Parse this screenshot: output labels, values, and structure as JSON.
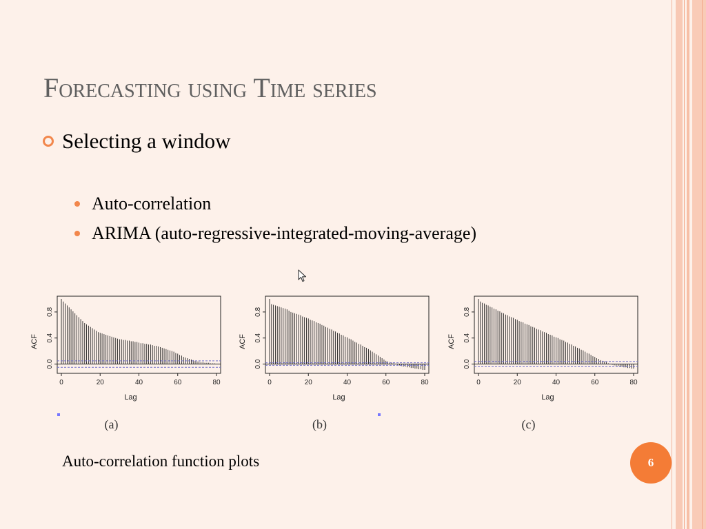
{
  "slide": {
    "title": "Forecasting using Time series",
    "bullet_main": "Selecting a window",
    "sub_bullets": [
      "Auto-correlation",
      "ARIMA (auto-regressive-integrated-moving-average)"
    ],
    "caption": "Auto-correlation function plots",
    "page_number": "6"
  },
  "icons": {
    "main_bullet": "ring-bullet-icon",
    "sub_bullet": "dot-bullet-icon",
    "cursor": "mouse-pointer-icon"
  },
  "colors": {
    "background": "#fdf1ea",
    "accent": "#f47c36",
    "title": "#5f5f5f",
    "confidence_line": "#7070c8"
  },
  "chart_data": [
    {
      "type": "bar",
      "panel_label": "(a)",
      "xlabel": "Lag",
      "ylabel": "ACF",
      "xlim": [
        0,
        80
      ],
      "ylim": [
        -0.1,
        1.0
      ],
      "xticks": [
        "0",
        "20",
        "40",
        "60",
        "80"
      ],
      "yticks": [
        "0.0",
        "0.4",
        "0.8"
      ],
      "confidence_bounds": [
        0.05,
        -0.05
      ],
      "x": [
        0,
        1,
        2,
        3,
        4,
        5,
        6,
        7,
        8,
        9,
        10,
        11,
        12,
        13,
        14,
        15,
        16,
        17,
        18,
        19,
        20,
        21,
        22,
        23,
        24,
        25,
        26,
        27,
        28,
        29,
        30,
        31,
        32,
        33,
        34,
        35,
        36,
        37,
        38,
        39,
        40,
        41,
        42,
        43,
        44,
        45,
        46,
        47,
        48,
        49,
        50,
        51,
        52,
        53,
        54,
        55,
        56,
        57,
        58,
        59,
        60,
        61,
        62,
        63,
        64,
        65,
        66,
        67,
        68,
        69,
        70,
        71,
        72,
        73,
        74,
        75,
        76,
        77,
        78,
        79,
        80
      ],
      "values": [
        1.0,
        0.96,
        0.93,
        0.9,
        0.87,
        0.84,
        0.81,
        0.78,
        0.75,
        0.72,
        0.69,
        0.66,
        0.63,
        0.61,
        0.59,
        0.57,
        0.55,
        0.53,
        0.51,
        0.49,
        0.48,
        0.47,
        0.46,
        0.45,
        0.44,
        0.43,
        0.42,
        0.41,
        0.4,
        0.39,
        0.38,
        0.38,
        0.37,
        0.37,
        0.36,
        0.36,
        0.35,
        0.35,
        0.34,
        0.34,
        0.33,
        0.32,
        0.32,
        0.31,
        0.31,
        0.3,
        0.3,
        0.29,
        0.28,
        0.28,
        0.27,
        0.26,
        0.25,
        0.24,
        0.23,
        0.22,
        0.21,
        0.2,
        0.19,
        0.17,
        0.16,
        0.14,
        0.13,
        0.11,
        0.1,
        0.09,
        0.08,
        0.07,
        0.06,
        0.05,
        0.04,
        0.04,
        0.03,
        0.03,
        0.02,
        0.02,
        0.02,
        0.01,
        0.01,
        0.01,
        0.0
      ]
    },
    {
      "type": "bar",
      "panel_label": "(b)",
      "xlabel": "Lag",
      "ylabel": "ACF",
      "xlim": [
        0,
        80
      ],
      "ylim": [
        -0.1,
        1.0
      ],
      "xticks": [
        "0",
        "20",
        "40",
        "60",
        "80"
      ],
      "yticks": [
        "0.0",
        "0.4",
        "0.8"
      ],
      "confidence_bounds": [
        0.02,
        -0.02
      ],
      "x": [
        0,
        1,
        2,
        3,
        4,
        5,
        6,
        7,
        8,
        9,
        10,
        11,
        12,
        13,
        14,
        15,
        16,
        17,
        18,
        19,
        20,
        21,
        22,
        23,
        24,
        25,
        26,
        27,
        28,
        29,
        30,
        31,
        32,
        33,
        34,
        35,
        36,
        37,
        38,
        39,
        40,
        41,
        42,
        43,
        44,
        45,
        46,
        47,
        48,
        49,
        50,
        51,
        52,
        53,
        54,
        55,
        56,
        57,
        58,
        59,
        60,
        61,
        62,
        63,
        64,
        65,
        66,
        67,
        68,
        69,
        70,
        71,
        72,
        73,
        74,
        75,
        76,
        77,
        78,
        79,
        80
      ],
      "values": [
        1.0,
        0.92,
        0.91,
        0.9,
        0.89,
        0.88,
        0.87,
        0.86,
        0.85,
        0.84,
        0.82,
        0.8,
        0.79,
        0.78,
        0.77,
        0.76,
        0.75,
        0.73,
        0.72,
        0.71,
        0.7,
        0.68,
        0.67,
        0.66,
        0.64,
        0.63,
        0.62,
        0.6,
        0.59,
        0.57,
        0.56,
        0.54,
        0.53,
        0.51,
        0.5,
        0.48,
        0.47,
        0.45,
        0.44,
        0.42,
        0.41,
        0.39,
        0.38,
        0.36,
        0.34,
        0.33,
        0.31,
        0.3,
        0.28,
        0.26,
        0.25,
        0.23,
        0.21,
        0.19,
        0.17,
        0.15,
        0.13,
        0.11,
        0.09,
        0.07,
        0.05,
        0.04,
        0.03,
        0.02,
        0.01,
        0.0,
        -0.01,
        -0.02,
        -0.03,
        -0.04,
        -0.04,
        -0.05,
        -0.05,
        -0.06,
        -0.06,
        -0.07,
        -0.07,
        -0.08,
        -0.08,
        -0.09,
        -0.09
      ]
    },
    {
      "type": "bar",
      "panel_label": "(c)",
      "xlabel": "Lag",
      "ylabel": "ACF",
      "xlim": [
        0,
        80
      ],
      "ylim": [
        -0.1,
        1.0
      ],
      "xticks": [
        "0",
        "20",
        "40",
        "60",
        "80"
      ],
      "yticks": [
        "0.0",
        "0.4",
        "0.8"
      ],
      "confidence_bounds": [
        0.04,
        -0.04
      ],
      "x": [
        0,
        1,
        2,
        3,
        4,
        5,
        6,
        7,
        8,
        9,
        10,
        11,
        12,
        13,
        14,
        15,
        16,
        17,
        18,
        19,
        20,
        21,
        22,
        23,
        24,
        25,
        26,
        27,
        28,
        29,
        30,
        31,
        32,
        33,
        34,
        35,
        36,
        37,
        38,
        39,
        40,
        41,
        42,
        43,
        44,
        45,
        46,
        47,
        48,
        49,
        50,
        51,
        52,
        53,
        54,
        55,
        56,
        57,
        58,
        59,
        60,
        61,
        62,
        63,
        64,
        65,
        66,
        67,
        68,
        69,
        70,
        71,
        72,
        73,
        74,
        75,
        76,
        77,
        78,
        79,
        80
      ],
      "values": [
        1.0,
        0.96,
        0.94,
        0.93,
        0.91,
        0.9,
        0.88,
        0.87,
        0.85,
        0.84,
        0.82,
        0.81,
        0.79,
        0.78,
        0.76,
        0.75,
        0.73,
        0.72,
        0.71,
        0.69,
        0.68,
        0.66,
        0.65,
        0.64,
        0.62,
        0.61,
        0.6,
        0.58,
        0.57,
        0.56,
        0.54,
        0.53,
        0.52,
        0.5,
        0.49,
        0.48,
        0.46,
        0.45,
        0.44,
        0.42,
        0.41,
        0.4,
        0.38,
        0.37,
        0.36,
        0.34,
        0.33,
        0.31,
        0.3,
        0.28,
        0.27,
        0.25,
        0.24,
        0.22,
        0.21,
        0.19,
        0.17,
        0.16,
        0.14,
        0.12,
        0.11,
        0.09,
        0.08,
        0.06,
        0.05,
        0.04,
        0.03,
        0.01,
        0.0,
        -0.01,
        -0.02,
        -0.03,
        -0.03,
        -0.04,
        -0.04,
        -0.05,
        -0.05,
        -0.06,
        -0.06,
        -0.07,
        -0.07
      ]
    }
  ]
}
